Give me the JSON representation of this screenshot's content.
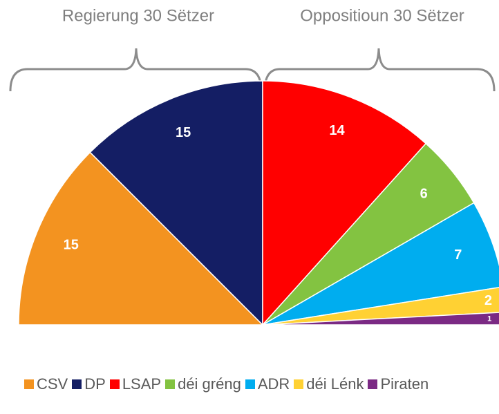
{
  "chart_data": {
    "type": "pie",
    "annotations": [
      "Regierung 30 Sëtzer",
      "Oppositioun 30 Sëtzer"
    ],
    "categories": [
      "CSV",
      "DP",
      "LSAP",
      "déi gréng",
      "ADR",
      "déi Lénk",
      "Piraten"
    ],
    "values": [
      15,
      15,
      14,
      6,
      7,
      2,
      1
    ],
    "colors": [
      "#f39320",
      "#141e64",
      "#ff0000",
      "#83c341",
      "#00adef",
      "#ffd133",
      "#7b2a84"
    ],
    "legend": "bottom"
  }
}
